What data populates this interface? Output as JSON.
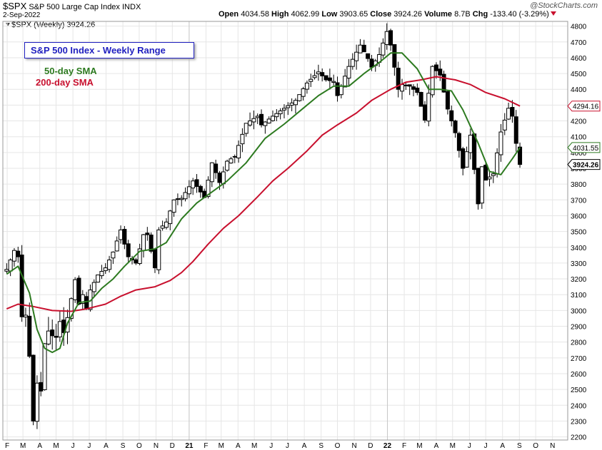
{
  "header": {
    "symbol": "$SPX",
    "name": "S&P 500 Large Cap Index",
    "exchange": "INDX",
    "date": "2-Sep-2022",
    "open_label": "Open",
    "open": "4034.58",
    "high_label": "High",
    "high": "4062.99",
    "low_label": "Low",
    "low": "3903.65",
    "close_label": "Close",
    "close": "3924.26",
    "volume_label": "Volume",
    "volume": "8.7B",
    "chg_label": "Chg",
    "chg": "-133.40 (-3.29%)",
    "legend": "$SPX (Weekly) 3924.26",
    "brand": "@StockCharts.com"
  },
  "annotations": {
    "box": "S&P 500 Index - Weekly Range",
    "sma50": "50-day SMA",
    "sma200": "200-day SMA"
  },
  "colors": {
    "up": "#000000",
    "down": "#000000",
    "sma50": "#2d7a20",
    "sma200": "#c8102e",
    "grid": "#e6e6e6",
    "accent": "#1f1fbf"
  },
  "chart_data": {
    "type": "candlestick",
    "yticks": [
      2200,
      2300,
      2400,
      2500,
      2600,
      2700,
      2800,
      2900,
      3000,
      3100,
      3200,
      3300,
      3400,
      3500,
      3600,
      3700,
      3800,
      3900,
      4000,
      4100,
      4200,
      4300,
      4400,
      4500,
      4600,
      4700,
      4800
    ],
    "ylim": [
      2180,
      4830
    ],
    "xlabels": [
      {
        "text": "F",
        "date": "2020-02-01"
      },
      {
        "text": "M",
        "date": "2020-03-01"
      },
      {
        "text": "A",
        "date": "2020-04-01"
      },
      {
        "text": "M",
        "date": "2020-05-01"
      },
      {
        "text": "J",
        "date": "2020-06-01"
      },
      {
        "text": "J",
        "date": "2020-07-01"
      },
      {
        "text": "A",
        "date": "2020-08-01"
      },
      {
        "text": "S",
        "date": "2020-09-01"
      },
      {
        "text": "O",
        "date": "2020-10-01"
      },
      {
        "text": "N",
        "date": "2020-11-01"
      },
      {
        "text": "D",
        "date": "2020-12-01"
      },
      {
        "text": "21",
        "date": "2021-01-01"
      },
      {
        "text": "F",
        "date": "2021-02-01"
      },
      {
        "text": "M",
        "date": "2021-03-01"
      },
      {
        "text": "A",
        "date": "2021-04-01"
      },
      {
        "text": "M",
        "date": "2021-05-01"
      },
      {
        "text": "J",
        "date": "2021-06-01"
      },
      {
        "text": "J",
        "date": "2021-07-01"
      },
      {
        "text": "A",
        "date": "2021-08-01"
      },
      {
        "text": "S",
        "date": "2021-09-01"
      },
      {
        "text": "O",
        "date": "2021-10-01"
      },
      {
        "text": "N",
        "date": "2021-11-01"
      },
      {
        "text": "D",
        "date": "2021-12-01"
      },
      {
        "text": "22",
        "date": "2022-01-01"
      },
      {
        "text": "F",
        "date": "2022-02-01"
      },
      {
        "text": "M",
        "date": "2022-03-01"
      },
      {
        "text": "A",
        "date": "2022-04-01"
      },
      {
        "text": "M",
        "date": "2022-05-01"
      },
      {
        "text": "J",
        "date": "2022-06-01"
      },
      {
        "text": "J",
        "date": "2022-07-01"
      },
      {
        "text": "A",
        "date": "2022-08-01"
      },
      {
        "text": "S",
        "date": "2022-09-01"
      },
      {
        "text": "O",
        "date": "2022-10-01"
      },
      {
        "text": "N",
        "date": "2022-11-01"
      }
    ],
    "year_lines": [
      "2021-01-01",
      "2022-01-01"
    ],
    "xlim": [
      "2020-01-24",
      "2022-11-29"
    ],
    "price_badges": [
      {
        "value": 4294.16,
        "label": "4294.16",
        "color": "#c8102e"
      },
      {
        "value": 4031.55,
        "label": "4031.55",
        "color": "#2d7a20"
      },
      {
        "value": 3924.26,
        "label": "3924.26",
        "color": "#000000"
      }
    ],
    "anchors": [
      [
        "2020-01-31",
        3260
      ],
      [
        "2020-02-14",
        3380
      ],
      [
        "2020-02-21",
        3340
      ],
      [
        "2020-02-28",
        2960
      ],
      [
        "2020-03-06",
        2970
      ],
      [
        "2020-03-13",
        2710
      ],
      [
        "2020-03-20",
        2300
      ],
      [
        "2020-03-27",
        2540
      ],
      [
        "2020-04-03",
        2490
      ],
      [
        "2020-04-10",
        2790
      ],
      [
        "2020-04-17",
        2870
      ],
      [
        "2020-04-24",
        2840
      ],
      [
        "2020-05-01",
        2830
      ],
      [
        "2020-05-08",
        2930
      ],
      [
        "2020-05-15",
        2860
      ],
      [
        "2020-05-22",
        2955
      ],
      [
        "2020-06-05",
        3195
      ],
      [
        "2020-06-12",
        3040
      ],
      [
        "2020-06-19",
        3100
      ],
      [
        "2020-06-26",
        3010
      ],
      [
        "2020-07-03",
        3130
      ],
      [
        "2020-07-17",
        3225
      ],
      [
        "2020-07-31",
        3270
      ],
      [
        "2020-08-14",
        3370
      ],
      [
        "2020-08-28",
        3510
      ],
      [
        "2020-09-04",
        3420
      ],
      [
        "2020-09-11",
        3340
      ],
      [
        "2020-09-25",
        3300
      ],
      [
        "2020-10-09",
        3480
      ],
      [
        "2020-10-16",
        3480
      ],
      [
        "2020-10-30",
        3270
      ],
      [
        "2020-11-06",
        3510
      ],
      [
        "2020-11-20",
        3560
      ],
      [
        "2020-12-04",
        3700
      ],
      [
        "2020-12-18",
        3710
      ],
      [
        "2021-01-08",
        3820
      ],
      [
        "2021-01-29",
        3715
      ],
      [
        "2021-02-12",
        3935
      ],
      [
        "2021-02-26",
        3810
      ],
      [
        "2021-03-12",
        3945
      ],
      [
        "2021-03-26",
        3975
      ],
      [
        "2021-04-16",
        4185
      ],
      [
        "2021-05-07",
        4230
      ],
      [
        "2021-05-14",
        4175
      ],
      [
        "2021-06-04",
        4230
      ],
      [
        "2021-06-25",
        4280
      ],
      [
        "2021-07-16",
        4330
      ],
      [
        "2021-08-06",
        4440
      ],
      [
        "2021-08-27",
        4510
      ],
      [
        "2021-09-10",
        4460
      ],
      [
        "2021-09-24",
        4450
      ],
      [
        "2021-10-01",
        4360
      ],
      [
        "2021-10-22",
        4545
      ],
      [
        "2021-11-12",
        4680
      ],
      [
        "2021-11-26",
        4595
      ],
      [
        "2021-12-03",
        4540
      ],
      [
        "2021-12-17",
        4620
      ],
      [
        "2021-12-31",
        4766
      ],
      [
        "2022-01-07",
        4680
      ],
      [
        "2022-01-21",
        4400
      ],
      [
        "2022-01-28",
        4430
      ],
      [
        "2022-02-11",
        4420
      ],
      [
        "2022-02-25",
        4380
      ],
      [
        "2022-03-11",
        4205
      ],
      [
        "2022-03-25",
        4545
      ],
      [
        "2022-04-08",
        4490
      ],
      [
        "2022-04-22",
        4275
      ],
      [
        "2022-05-06",
        4125
      ],
      [
        "2022-05-20",
        3900
      ],
      [
        "2022-06-03",
        4110
      ],
      [
        "2022-06-17",
        3675
      ],
      [
        "2022-06-24",
        3910
      ],
      [
        "2022-07-01",
        3825
      ],
      [
        "2022-07-15",
        3865
      ],
      [
        "2022-07-29",
        4130
      ],
      [
        "2022-08-12",
        4280
      ],
      [
        "2022-08-19",
        4230
      ],
      [
        "2022-08-26",
        4058
      ],
      [
        "2022-09-02",
        3924
      ]
    ],
    "sma50": [
      [
        "2020-01-31",
        3230
      ],
      [
        "2020-02-21",
        3280
      ],
      [
        "2020-03-13",
        3110
      ],
      [
        "2020-03-27",
        2880
      ],
      [
        "2020-04-10",
        2760
      ],
      [
        "2020-04-24",
        2735
      ],
      [
        "2020-05-08",
        2760
      ],
      [
        "2020-05-22",
        2920
      ],
      [
        "2020-06-12",
        3050
      ],
      [
        "2020-07-03",
        3060
      ],
      [
        "2020-07-24",
        3140
      ],
      [
        "2020-08-14",
        3200
      ],
      [
        "2020-09-04",
        3280
      ],
      [
        "2020-10-02",
        3375
      ],
      [
        "2020-10-30",
        3390
      ],
      [
        "2020-11-20",
        3430
      ],
      [
        "2020-12-18",
        3580
      ],
      [
        "2021-01-15",
        3680
      ],
      [
        "2021-02-12",
        3750
      ],
      [
        "2021-03-12",
        3820
      ],
      [
        "2021-04-16",
        3935
      ],
      [
        "2021-05-21",
        4090
      ],
      [
        "2021-06-25",
        4180
      ],
      [
        "2021-07-30",
        4280
      ],
      [
        "2021-08-27",
        4360
      ],
      [
        "2021-09-24",
        4420
      ],
      [
        "2021-10-22",
        4420
      ],
      [
        "2021-11-19",
        4500
      ],
      [
        "2021-12-17",
        4570
      ],
      [
        "2022-01-07",
        4630
      ],
      [
        "2022-01-28",
        4630
      ],
      [
        "2022-02-25",
        4530
      ],
      [
        "2022-03-18",
        4400
      ],
      [
        "2022-04-08",
        4400
      ],
      [
        "2022-04-29",
        4390
      ],
      [
        "2022-05-20",
        4270
      ],
      [
        "2022-06-17",
        4060
      ],
      [
        "2022-07-08",
        3880
      ],
      [
        "2022-07-29",
        3860
      ],
      [
        "2022-08-19",
        3960
      ],
      [
        "2022-09-02",
        4031.55
      ]
    ],
    "sma200": [
      [
        "2020-01-31",
        3010
      ],
      [
        "2020-02-21",
        3040
      ],
      [
        "2020-03-20",
        3025
      ],
      [
        "2020-04-24",
        3000
      ],
      [
        "2020-05-29",
        2995
      ],
      [
        "2020-06-26",
        3010
      ],
      [
        "2020-07-31",
        3040
      ],
      [
        "2020-08-28",
        3090
      ],
      [
        "2020-09-25",
        3130
      ],
      [
        "2020-10-30",
        3150
      ],
      [
        "2020-11-27",
        3190
      ],
      [
        "2020-12-18",
        3240
      ],
      [
        "2021-01-08",
        3310
      ],
      [
        "2021-02-05",
        3420
      ],
      [
        "2021-03-05",
        3520
      ],
      [
        "2021-04-02",
        3600
      ],
      [
        "2021-05-07",
        3720
      ],
      [
        "2021-06-04",
        3820
      ],
      [
        "2021-07-02",
        3900
      ],
      [
        "2021-08-06",
        4010
      ],
      [
        "2021-09-03",
        4110
      ],
      [
        "2021-10-01",
        4175
      ],
      [
        "2021-11-05",
        4250
      ],
      [
        "2021-12-03",
        4330
      ],
      [
        "2022-01-07",
        4400
      ],
      [
        "2022-02-04",
        4445
      ],
      [
        "2022-03-04",
        4460
      ],
      [
        "2022-04-01",
        4480
      ],
      [
        "2022-05-06",
        4460
      ],
      [
        "2022-06-03",
        4430
      ],
      [
        "2022-07-01",
        4380
      ],
      [
        "2022-08-05",
        4340
      ],
      [
        "2022-09-02",
        4294.16
      ]
    ]
  }
}
